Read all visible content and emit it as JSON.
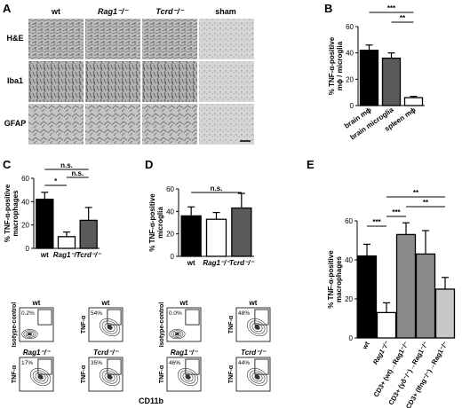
{
  "panels": {
    "A": {
      "letter": "A",
      "col_headers": [
        "wt",
        "Rag1⁻/⁻",
        "Tcrd⁻/⁻",
        "sham"
      ],
      "row_headers": [
        "H&E",
        "Iba1",
        "GFAP"
      ]
    },
    "B": {
      "letter": "B"
    },
    "C": {
      "letter": "C"
    },
    "D": {
      "letter": "D"
    },
    "E": {
      "letter": "E"
    }
  },
  "flow_C": {
    "top_titles": [
      "wt",
      "wt"
    ],
    "bottom_titles": [
      "Rag1⁻/⁻",
      "Tcrd⁻/⁻"
    ],
    "percents": [
      "0.2%",
      "54%",
      "17%",
      "35%"
    ],
    "ylabels": [
      "Isotype-control",
      "TNF-α",
      "TNF-α",
      "TNF-α"
    ]
  },
  "flow_D": {
    "top_titles": [
      "wt",
      "wt"
    ],
    "bottom_titles": [
      "Rag1⁻/⁻",
      "Tcrd⁻/⁻"
    ],
    "percents": [
      "0.0%",
      "48%",
      "46%",
      "44%"
    ],
    "ylabels": [
      "Isotype-control",
      "TNF-α",
      "TNF-α",
      "TNF-α"
    ]
  },
  "flow_xlabel": "CD11b",
  "colors": {
    "black": "#000000",
    "darkgray": "#5a5a5a",
    "midgray": "#8a8a8a",
    "lightgray": "#c8c8c8",
    "white": "#ffffff"
  },
  "chart_data": [
    {
      "id": "B",
      "type": "bar",
      "categories": [
        "brain mϕ",
        "brain microglia",
        "spleen mϕ"
      ],
      "values": [
        42,
        36,
        6
      ],
      "errors": [
        4,
        4,
        1
      ],
      "fills": [
        "#000000",
        "#5a5a5a",
        "#ffffff"
      ],
      "ylabel": "% TNF-α-positive mϕ / microglia",
      "ylim": [
        0,
        60
      ],
      "yticks": [
        0,
        20,
        40,
        60
      ],
      "significance": [
        {
          "from": 1,
          "to": 2,
          "label": "**"
        },
        {
          "from": 0,
          "to": 2,
          "label": "***"
        }
      ]
    },
    {
      "id": "C",
      "type": "bar",
      "categories": [
        "wt",
        "Rag1⁻/⁻",
        "Tcrd⁻/⁻"
      ],
      "values": [
        42,
        10,
        24
      ],
      "errors": [
        6,
        4,
        11
      ],
      "fills": [
        "#000000",
        "#ffffff",
        "#5a5a5a"
      ],
      "ylabel": "% TNF-α-positive macrophages",
      "ylim": [
        0,
        60
      ],
      "yticks": [
        0,
        20,
        40,
        60
      ],
      "significance": [
        {
          "from": 0,
          "to": 1,
          "label": "*"
        },
        {
          "from": 1,
          "to": 2,
          "label": "n.s."
        },
        {
          "from": 0,
          "to": 2,
          "label": "n.s."
        }
      ]
    },
    {
      "id": "D",
      "type": "bar",
      "categories": [
        "wt",
        "Rag1⁻/⁻",
        "Tcrd⁻/⁻"
      ],
      "values": [
        36,
        33,
        43
      ],
      "errors": [
        8,
        6,
        13
      ],
      "fills": [
        "#000000",
        "#ffffff",
        "#5a5a5a"
      ],
      "ylabel": "% TNF-α-positive microglia",
      "ylim": [
        0,
        60
      ],
      "yticks": [
        0,
        20,
        40,
        60
      ],
      "significance": [
        {
          "from": 0,
          "to": 2,
          "label": "n.s."
        }
      ]
    },
    {
      "id": "E",
      "type": "bar",
      "categories": [
        "wt",
        "Rag1⁻/⁻",
        "CD3+ (wt)→Rag1⁻/⁻",
        "CD3+ (γδ⁻/⁻)→Rag1⁻/⁻",
        "CD3+ (Ifng⁻/⁻)→Rag1⁻/⁻"
      ],
      "values": [
        42,
        13,
        53,
        43,
        25
      ],
      "errors": [
        6,
        5,
        6,
        12,
        6
      ],
      "fills": [
        "#000000",
        "#ffffff",
        "#8a8a8a",
        "#8a8a8a",
        "#c8c8c8"
      ],
      "ylabel": "% TNF-α-positive macrophages",
      "ylim": [
        0,
        60
      ],
      "yticks": [
        0,
        20,
        40,
        60
      ],
      "significance": [
        {
          "from": 0,
          "to": 1,
          "label": "***"
        },
        {
          "from": 1,
          "to": 2,
          "label": "***"
        },
        {
          "from": 2,
          "to": 4,
          "label": "**"
        },
        {
          "from": 1,
          "to": 4,
          "label": "**"
        }
      ]
    }
  ]
}
